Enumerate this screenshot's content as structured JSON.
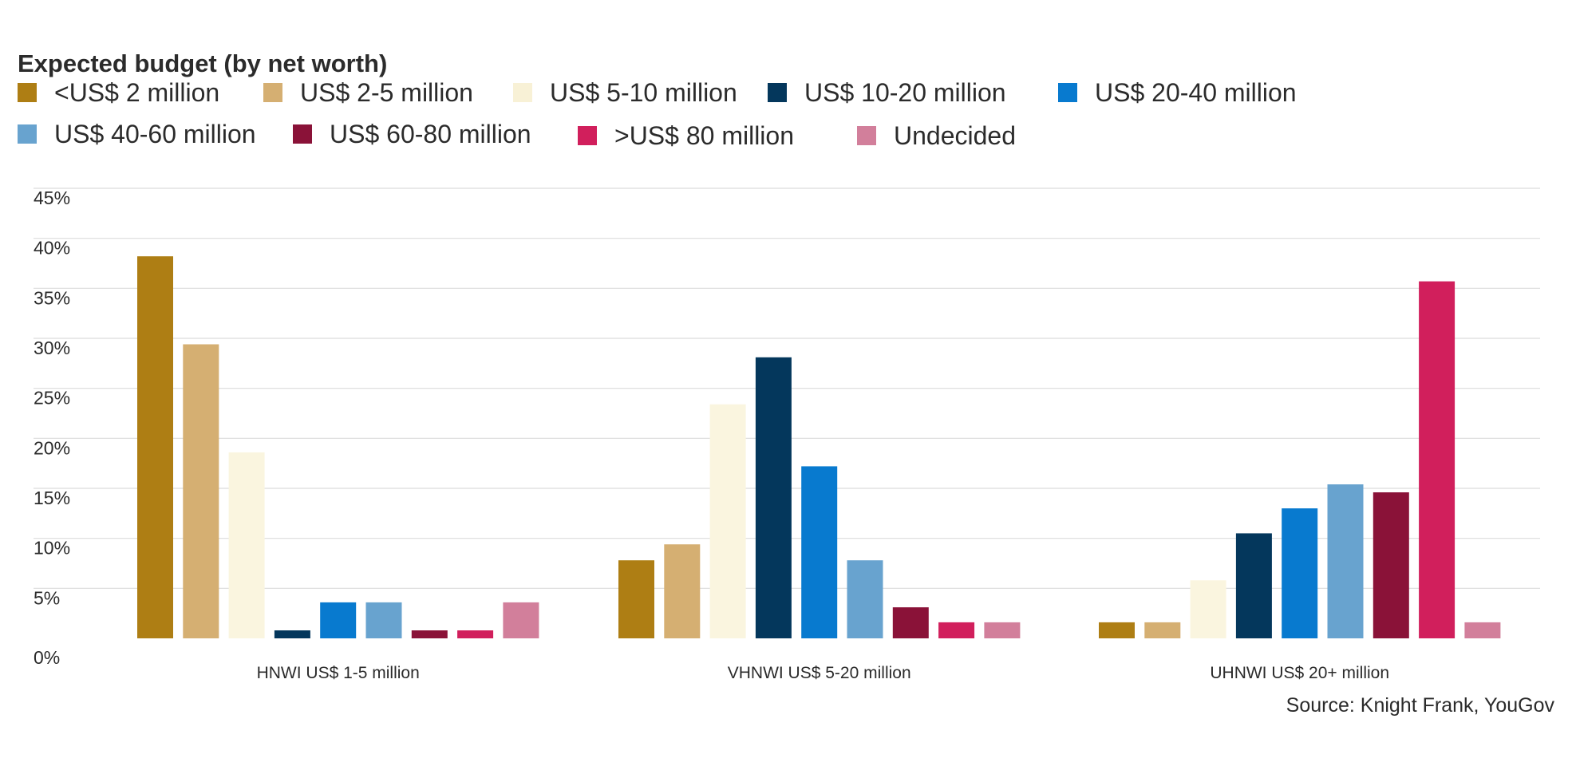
{
  "chart_data": {
    "type": "bar",
    "title": "Expected budget (by net worth)",
    "xlabel": "",
    "ylabel": "",
    "ylim": [
      0,
      45
    ],
    "y_ticks": [
      "0%",
      "5%",
      "10%",
      "15%",
      "20%",
      "25%",
      "30%",
      "35%",
      "40%",
      "45%"
    ],
    "grid": true,
    "legend_position": "top-left",
    "categories": [
      "HNWI US$ 1-5 million",
      "VHNWI US$ 5-20  million",
      "UHNWI US$ 20+ million"
    ],
    "series": [
      {
        "name": "<US$ 2 million",
        "color": "#ae7e14",
        "values": [
          38.2,
          7.8,
          1.6
        ]
      },
      {
        "name": "US$ 2-5 million",
        "color": "#d5af72",
        "values": [
          29.4,
          9.4,
          1.6
        ]
      },
      {
        "name": "US$ 5-10 million",
        "color": "#faf5df",
        "values": [
          18.6,
          23.4,
          5.8
        ]
      },
      {
        "name": "US$ 10-20 million",
        "color": "#04375c",
        "values": [
          0.8,
          28.1,
          10.5
        ]
      },
      {
        "name": "US$ 20-40 million",
        "color": "#087acf",
        "values": [
          3.6,
          17.2,
          13.0
        ]
      },
      {
        "name": "US$ 40-60 million",
        "color": "#68a3cf",
        "values": [
          3.6,
          7.8,
          15.4
        ]
      },
      {
        "name": "US$ 60-80 million",
        "color": "#8a1238",
        "values": [
          0.8,
          3.1,
          14.6
        ]
      },
      {
        "name": ">US$ 80 million",
        "color": "#d11f5c",
        "values": [
          0.8,
          1.6,
          35.7
        ]
      },
      {
        "name": "Undecided",
        "color": "#d27f9b",
        "values": [
          3.6,
          1.6,
          1.6
        ]
      }
    ],
    "source": "Source: Knight Frank, YouGov"
  },
  "colors": {
    "grid": "#dcdcdc",
    "text": "#2b2b2b"
  }
}
